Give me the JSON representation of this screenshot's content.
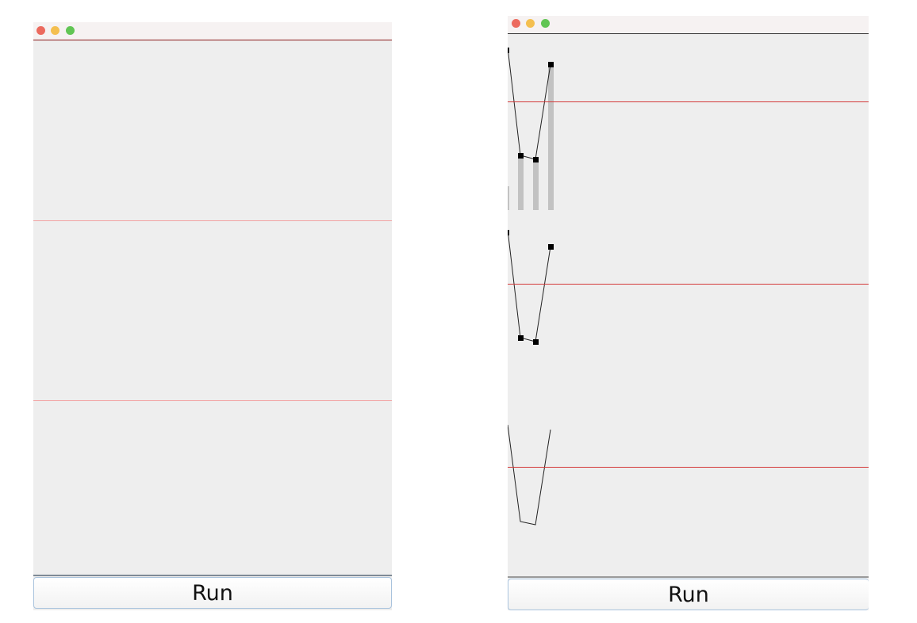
{
  "colors": {
    "close": "#ec6a5e",
    "minimize": "#f4bf4f",
    "zoom": "#61c554",
    "divider_empty": "#f2a3a3",
    "divider_plot": "#d43a3a",
    "titlebar_line": "#8b1a1a",
    "bars": "#c2c2c2",
    "line": "#222222",
    "markers": "#000000"
  },
  "left_window": {
    "title": "",
    "run_label": "Run"
  },
  "right_window": {
    "title": "",
    "run_label": "Run"
  }
}
